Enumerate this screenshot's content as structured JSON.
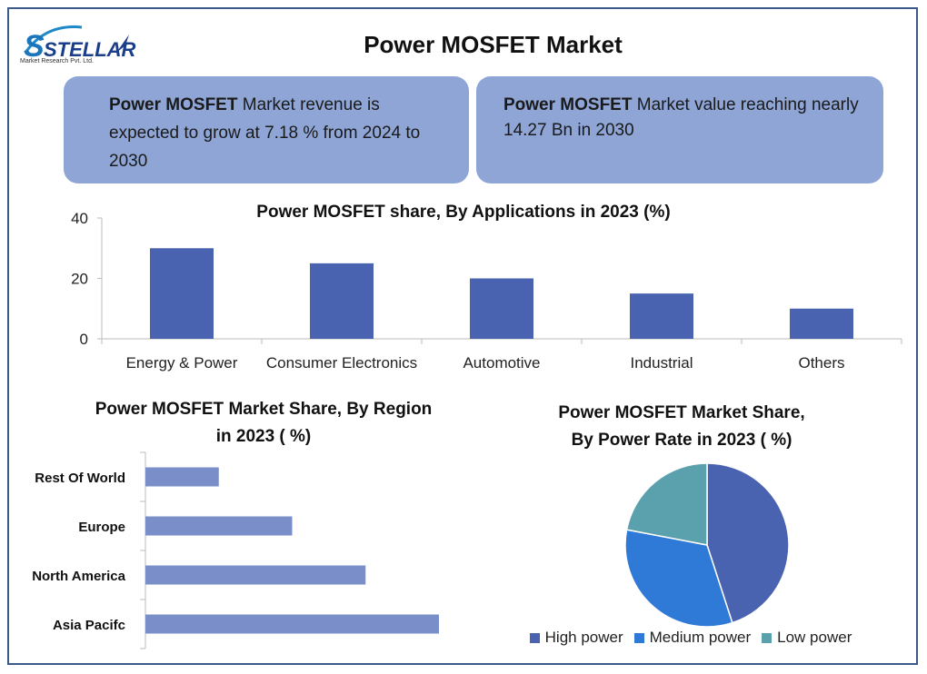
{
  "brand": {
    "logo_text": "STELLAR",
    "logo_sub": "Market Research Pvt. Ltd."
  },
  "page_title": "Power MOSFET Market",
  "info_boxes": [
    {
      "bold": "Power MOSFET",
      "text": " Market revenue is expected to grow at 7.18 % from 2024 to 2030"
    },
    {
      "bold": "Power MOSFET",
      "text": " Market value reaching nearly 14.27 Bn in 2030"
    }
  ],
  "chart_data": [
    {
      "type": "bar",
      "title": "Power MOSFET share,  By Applications in 2023 (%)",
      "categories": [
        "Energy & Power",
        "Consumer Electronics",
        "Automotive",
        "Industrial",
        "Others"
      ],
      "values": [
        30,
        25,
        20,
        15,
        10
      ],
      "ylim": [
        0,
        40
      ],
      "yticks": [
        0,
        20,
        40
      ],
      "color": "#4a63b0"
    },
    {
      "type": "bar",
      "orientation": "horizontal",
      "title": "Power MOSFET Market Share,  By Region in 2023 ( %)",
      "title_lines": [
        "Power MOSFET Market Share,  By Region",
        "in 2023 ( %)"
      ],
      "categories": [
        "Rest Of World",
        "Europe",
        "North America",
        "Asia Pacifc"
      ],
      "values": [
        10,
        20,
        30,
        40
      ],
      "xlim": [
        0,
        40
      ],
      "color": "#7a8fc9"
    },
    {
      "type": "pie",
      "title": "Power MOSFET Market Share, By Power Rate in 2023 ( %)",
      "title_lines": [
        "Power MOSFET Market Share,",
        "By Power Rate in 2023 ( %)"
      ],
      "labels": [
        "High power",
        "Medium power",
        "Low power"
      ],
      "values": [
        45,
        33,
        22
      ],
      "colors": [
        "#4a63b0",
        "#2e7ad6",
        "#5aa0ad"
      ],
      "legend_position": "bottom"
    }
  ]
}
